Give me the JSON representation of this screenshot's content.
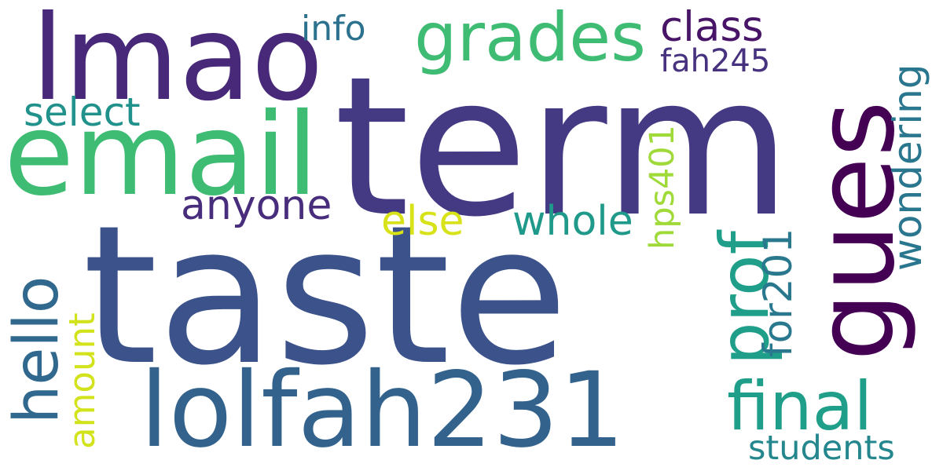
{
  "words": [
    {
      "id": "term",
      "text": "term",
      "color": "#443a83"
    },
    {
      "id": "taste",
      "text": "taste",
      "color": "#3b528b"
    },
    {
      "id": "lmao",
      "text": "lmao",
      "color": "#482878"
    },
    {
      "id": "email",
      "text": "email",
      "color": "#3fbc73"
    },
    {
      "id": "gues",
      "text": "gues",
      "color": "#440154"
    },
    {
      "id": "lolfah231",
      "text": "lolfah231",
      "color": "#33638d"
    },
    {
      "id": "grades",
      "text": "grades",
      "color": "#3fbc73"
    },
    {
      "id": "class",
      "text": "class",
      "color": "#481467"
    },
    {
      "id": "info",
      "text": "info",
      "color": "#2c728e"
    },
    {
      "id": "fah245",
      "text": "fah245",
      "color": "#46327e"
    },
    {
      "id": "select",
      "text": "select",
      "color": "#21918c"
    },
    {
      "id": "anyone",
      "text": "anyone",
      "color": "#472d7b"
    },
    {
      "id": "else",
      "text": "else",
      "color": "#d8e219"
    },
    {
      "id": "whole",
      "text": "whole",
      "color": "#1f9a8a"
    },
    {
      "id": "hps401",
      "text": "hps401",
      "color": "#a0da39"
    },
    {
      "id": "prof",
      "text": "prof",
      "color": "#1f9e89"
    },
    {
      "id": "wondering",
      "text": "wondering",
      "color": "#2a768e"
    },
    {
      "id": "hello",
      "text": "hello",
      "color": "#31688e"
    },
    {
      "id": "amount",
      "text": "amount",
      "color": "#d2e21b"
    },
    {
      "id": "for201",
      "text": "for201",
      "color": "#2a788e"
    },
    {
      "id": "final",
      "text": "final",
      "color": "#1f9e89"
    },
    {
      "id": "students",
      "text": "students",
      "color": "#24878e"
    }
  ]
}
